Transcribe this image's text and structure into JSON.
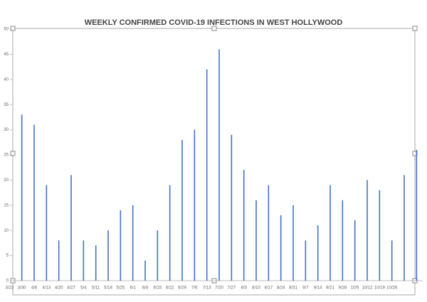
{
  "chart_data": {
    "type": "bar",
    "title": "WEEKLY CONFIRMED COVID-19 INFECTIONS IN WEST HOLLYWOOD",
    "categories": [
      "3/23",
      "3/30",
      "4/6",
      "4/13",
      "4/20",
      "4/27",
      "5/4",
      "5/11",
      "5/18",
      "5/25",
      "6/1",
      "6/8",
      "6/15",
      "6/22",
      "6/29",
      "7/6",
      "7/13",
      "7/20",
      "7/27",
      "8/3",
      "8/10",
      "8/17",
      "8/24",
      "8/31",
      "9/7",
      "9/14",
      "9/21",
      "9/28",
      "10/5",
      "10/12",
      "10/19",
      "10/26",
      null
    ],
    "values": [
      33,
      31,
      19,
      8,
      21,
      8,
      7,
      10,
      14,
      15,
      4,
      10,
      19,
      28,
      30,
      42,
      46,
      29,
      22,
      16,
      19,
      13,
      15,
      8,
      11,
      19,
      16,
      12,
      20,
      18,
      8,
      21,
      26
    ],
    "color": "#4472c4",
    "ylim": [
      0,
      50
    ],
    "yticks": [
      0,
      5,
      10,
      15,
      20,
      25,
      30,
      35,
      40,
      45,
      50
    ],
    "grid": false
  }
}
